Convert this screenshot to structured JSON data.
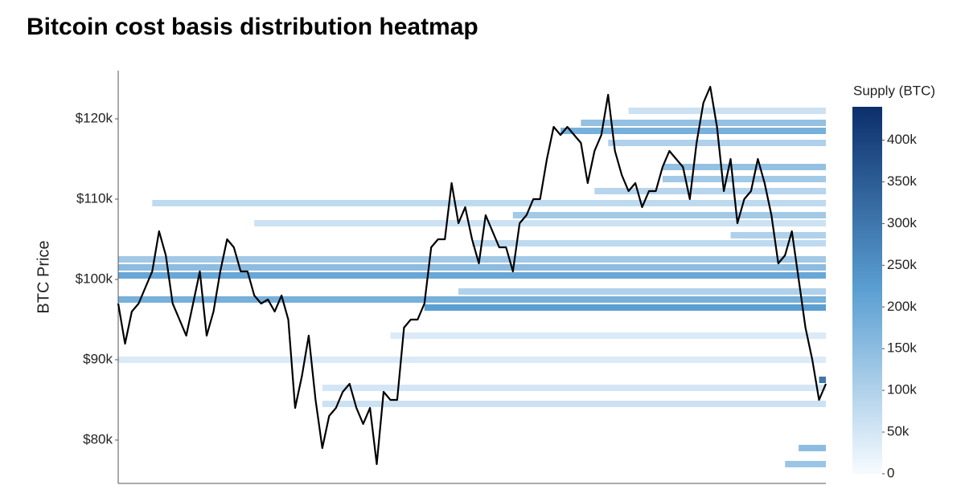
{
  "chart_data": {
    "type": "heatmap-line",
    "title": "Bitcoin cost basis distribution heatmap",
    "y_label": "BTC Price",
    "ylim": [
      74600,
      126000
    ],
    "yticks": [
      {
        "value": 80000,
        "label": "$80k"
      },
      {
        "value": 90000,
        "label": "$90k"
      },
      {
        "value": 100000,
        "label": "$100k"
      },
      {
        "value": 110000,
        "label": "$110k"
      },
      {
        "value": 120000,
        "label": "$120k"
      }
    ],
    "line_color": "#000000",
    "values": [
      97000,
      92000,
      96000,
      97000,
      99000,
      101000,
      106000,
      103000,
      97000,
      95000,
      93000,
      97000,
      101000,
      93000,
      96000,
      101000,
      105000,
      104000,
      101000,
      101000,
      98000,
      97000,
      97500,
      96000,
      98000,
      95000,
      84000,
      88000,
      93000,
      85000,
      79000,
      83000,
      84000,
      86000,
      87000,
      84000,
      82000,
      84000,
      77000,
      86000,
      85000,
      85000,
      94000,
      95000,
      95000,
      97000,
      104000,
      105000,
      105000,
      112000,
      107000,
      109000,
      105000,
      102000,
      108000,
      106000,
      104000,
      104000,
      101000,
      107000,
      108000,
      110000,
      110000,
      115000,
      119000,
      118000,
      119000,
      118000,
      117000,
      112000,
      116000,
      118000,
      123000,
      116000,
      113000,
      111000,
      112000,
      109000,
      111000,
      111000,
      114000,
      116000,
      115000,
      114000,
      110000,
      117000,
      122000,
      124000,
      119000,
      111000,
      115000,
      107000,
      110000,
      111000,
      115000,
      112000,
      108000,
      102000,
      103000,
      106000,
      100000,
      94000,
      90000,
      85000,
      87000
    ],
    "bands": {
      "price": [
        101500,
        100500,
        97500,
        102500,
        109500,
        107000,
        96500,
        98500,
        118500,
        119500,
        117000,
        114000,
        112500,
        111000,
        108000,
        104500,
        105500,
        84500,
        86500,
        90000,
        93000,
        121000,
        87500,
        79000,
        77000
      ],
      "start": [
        0,
        0,
        0,
        0,
        5,
        20,
        45,
        50,
        65,
        68,
        72,
        80,
        80,
        70,
        58,
        52,
        90,
        30,
        30,
        0,
        40,
        75,
        103,
        100,
        98
      ],
      "supply": [
        150000,
        200000,
        180000,
        120000,
        80000,
        60000,
        220000,
        100000,
        180000,
        140000,
        100000,
        140000,
        120000,
        90000,
        120000,
        80000,
        100000,
        60000,
        50000,
        40000,
        40000,
        60000,
        300000,
        150000,
        130000
      ]
    },
    "colorbar_title": "Supply (BTC)",
    "clim": [
      0,
      440000
    ],
    "colors": [
      "#f7fbff",
      "#5b9fd2",
      "#0c2f6b"
    ],
    "cticks": [
      0,
      {
        "value": 50000,
        "label": "50k"
      },
      {
        "value": 100000,
        "label": "100k"
      },
      {
        "value": 150000,
        "label": "150k"
      },
      {
        "value": 200000,
        "label": "200k"
      },
      {
        "value": 250000,
        "label": "250k"
      },
      {
        "value": 300000,
        "label": "300k"
      },
      {
        "value": 350000,
        "label": "350k"
      },
      {
        "value": 400000,
        "label": "400k"
      }
    ]
  }
}
